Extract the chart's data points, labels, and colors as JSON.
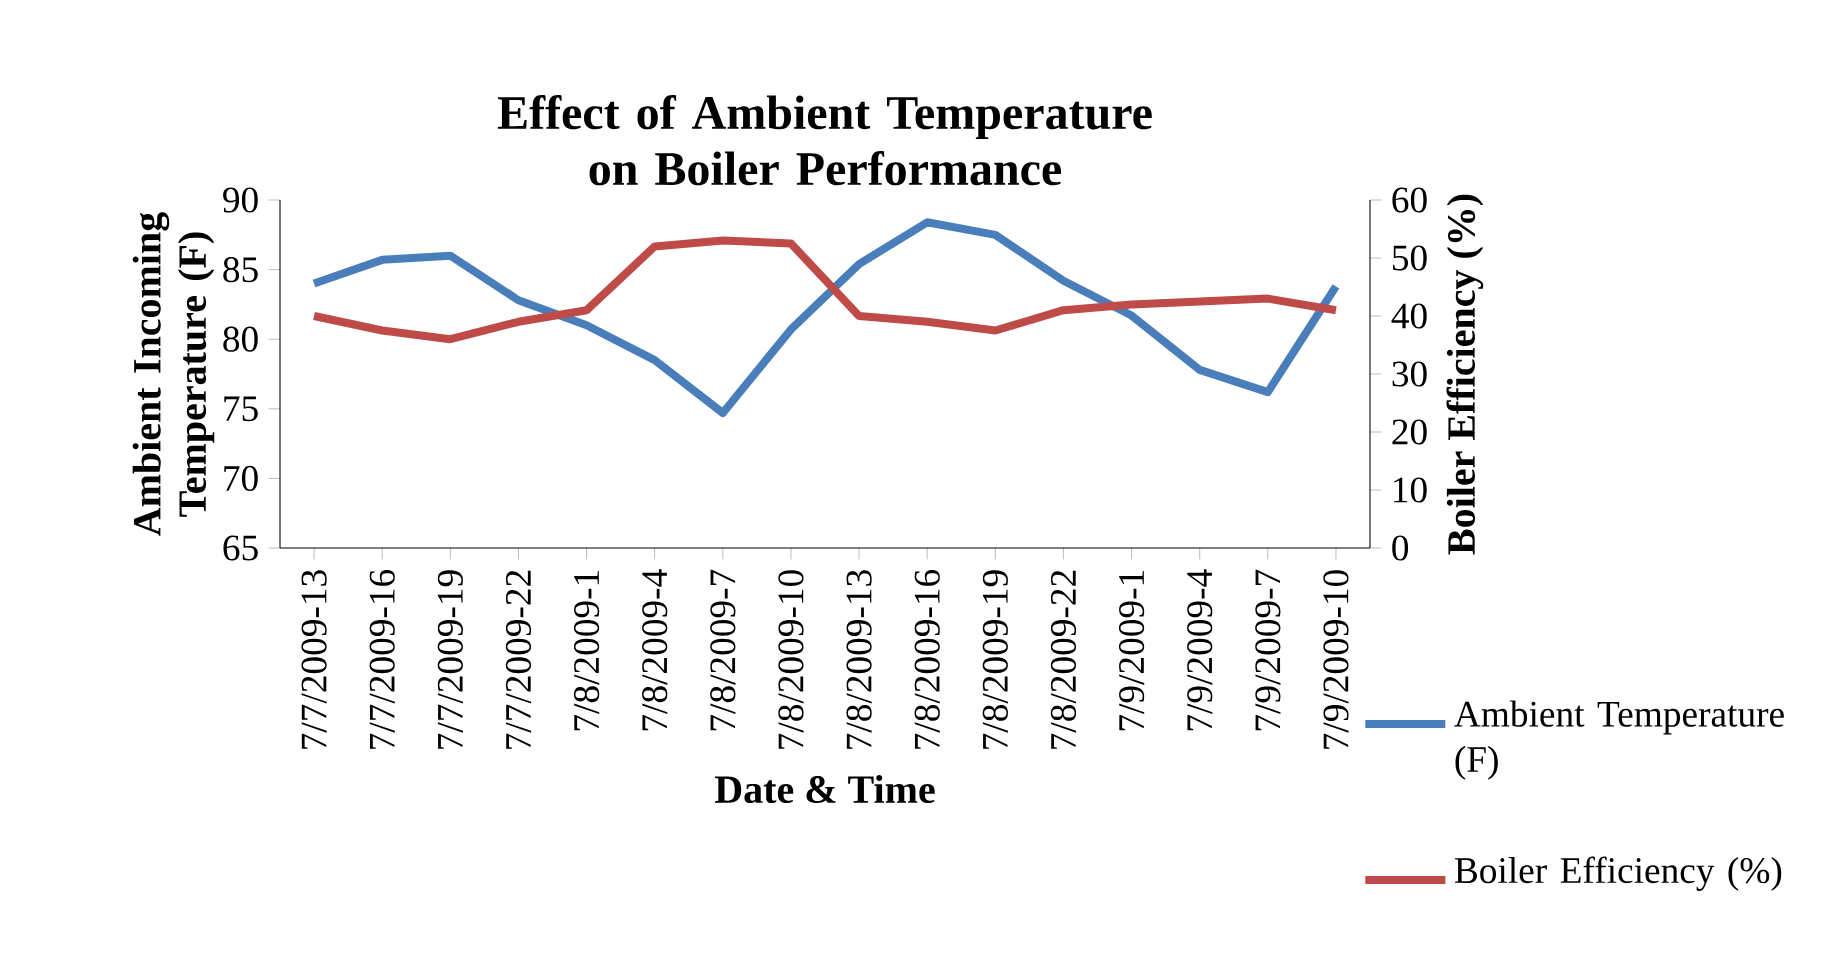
{
  "chart_data": {
    "type": "line",
    "title": "Effect of Ambient Temperature on Boiler Performance",
    "xlabel": "Date & Time",
    "ylabel": "Ambient Incoming Temperature (F)",
    "y2label": "Boiler Efficiency (%)",
    "categories": [
      "7/7/2009-13",
      "7/7/2009-16",
      "7/7/2009-19",
      "7/7/2009-22",
      "7/8/2009-1",
      "7/8/2009-4",
      "7/8/2009-7",
      "7/8/2009-10",
      "7/8/2009-13",
      "7/8/2009-16",
      "7/8/2009-19",
      "7/8/2009-22",
      "7/9/2009-1",
      "7/9/2009-4",
      "7/9/2009-7",
      "7/9/2009-10"
    ],
    "series": [
      {
        "name": "Ambient Temperature (F)",
        "color": "#4a7ebb",
        "values": [
          84.0,
          85.7,
          86.0,
          82.8,
          81.0,
          78.5,
          74.7,
          80.7,
          85.4,
          88.4,
          87.5,
          84.2,
          81.7,
          77.8,
          76.2,
          83.8
        ]
      },
      {
        "name": "Boiler Efficiency (%)",
        "color": "#be4b48",
        "axis": "y2",
        "values": [
          40,
          37.5,
          36,
          39,
          41,
          52,
          53,
          52.5,
          40,
          39,
          37.5,
          41,
          42,
          42.5,
          43,
          41
        ]
      }
    ],
    "ylim": [
      65,
      90
    ],
    "yticks": [
      65,
      70,
      75,
      80,
      85,
      90
    ],
    "y2lim": [
      0,
      60
    ],
    "y2ticks": [
      0,
      10,
      20,
      30,
      40,
      50,
      60
    ],
    "grid": false,
    "legend": "bottom right",
    "marker": "none",
    "line_style": "solid"
  }
}
